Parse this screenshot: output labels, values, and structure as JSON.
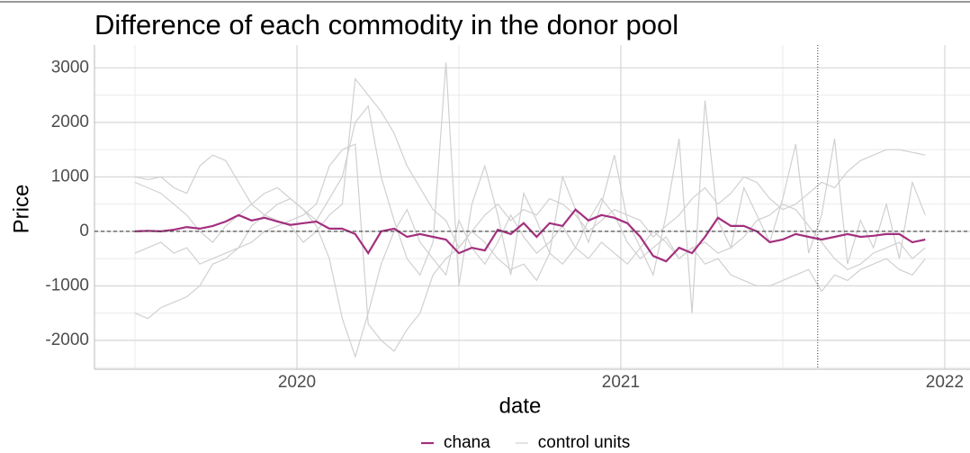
{
  "chart_data": {
    "type": "line",
    "title": "Difference of each commodity in the donor pool",
    "x_label": "date",
    "y_label": "Price",
    "xlim": [
      2019.375,
      2022.078
    ],
    "xticks": [
      2020,
      2021,
      2022
    ],
    "minor_xticks": [
      2019.5,
      2020.5,
      2021.5
    ],
    "ylim": [
      -2530,
      3420
    ],
    "yticks": [
      -2000,
      -1000,
      0,
      1000,
      2000,
      3000
    ],
    "minor_yticks": [
      -2500,
      -1500,
      -500,
      500,
      1500,
      2500
    ],
    "grid": true,
    "hline": 0,
    "vline": 2021.608,
    "legend": "bottom",
    "x": [
      2019.5,
      2019.54,
      2019.58,
      2019.62,
      2019.66,
      2019.7,
      2019.74,
      2019.78,
      2019.82,
      2019.86,
      2019.9,
      2019.94,
      2019.98,
      2020.02,
      2020.06,
      2020.1,
      2020.14,
      2020.18,
      2020.22,
      2020.26,
      2020.3,
      2020.34,
      2020.38,
      2020.42,
      2020.46,
      2020.5,
      2020.54,
      2020.58,
      2020.62,
      2020.66,
      2020.7,
      2020.74,
      2020.78,
      2020.82,
      2020.86,
      2020.9,
      2020.94,
      2020.98,
      2021.02,
      2021.06,
      2021.1,
      2021.14,
      2021.18,
      2021.22,
      2021.26,
      2021.3,
      2021.34,
      2021.38,
      2021.42,
      2021.46,
      2021.5,
      2021.54,
      2021.58,
      2021.62,
      2021.66,
      2021.7,
      2021.74,
      2021.78,
      2021.82,
      2021.86,
      2021.9,
      2021.94
    ],
    "series": [
      {
        "name": "chana",
        "color": "#a3307e",
        "values": [
          0,
          10,
          0,
          30,
          80,
          50,
          100,
          180,
          300,
          200,
          250,
          180,
          120,
          150,
          180,
          50,
          50,
          -50,
          -400,
          0,
          50,
          -100,
          -50,
          -100,
          -150,
          -400,
          -300,
          -350,
          30,
          -50,
          150,
          -100,
          150,
          100,
          400,
          200,
          300,
          250,
          150,
          -100,
          -450,
          -550,
          -300,
          -400,
          -100,
          250,
          100,
          100,
          0,
          -200,
          -150,
          -50,
          -100,
          -150,
          -100,
          -50,
          -100,
          -80,
          -50,
          -50,
          -200,
          -150
        ]
      }
    ],
    "control_units": {
      "name": "control units",
      "color": "#d0d0d0",
      "lines": [
        [
          1000,
          950,
          1000,
          800,
          700,
          1200,
          1400,
          1300,
          900,
          500,
          300,
          200,
          100,
          -200,
          0,
          300,
          500,
          2800,
          2500,
          2200,
          1800,
          1200,
          800,
          400,
          200,
          -300,
          0,
          300,
          500,
          200,
          400,
          300,
          600,
          500,
          300,
          0,
          200,
          400,
          300,
          200,
          -100,
          100,
          300,
          600,
          800,
          500,
          700,
          1000,
          900,
          600,
          400,
          500,
          700,
          900,
          800,
          1100,
          1300,
          1400,
          1500,
          1500,
          1450,
          1400
        ],
        [
          -1500,
          -1600,
          -1400,
          -1300,
          -1200,
          -1000,
          -600,
          -500,
          -300,
          -200,
          0,
          100,
          200,
          300,
          500,
          1200,
          1500,
          1600,
          -1700,
          -2000,
          -2200,
          -1800,
          -1500,
          -800,
          -500,
          -300,
          0,
          -200,
          -500,
          -700,
          -600,
          -900,
          -400,
          -600,
          -300,
          -500,
          -200,
          -400,
          -600,
          -300,
          0,
          -200,
          -500,
          -300,
          -600,
          -500,
          -800,
          -900,
          -1000,
          -1000,
          -900,
          -800,
          -700,
          -1100,
          -800,
          -900,
          -700,
          -600,
          -500,
          -700,
          -800,
          -500
        ],
        [
          -400,
          -300,
          -200,
          -400,
          -300,
          -600,
          -500,
          -400,
          -300,
          100,
          300,
          500,
          600,
          400,
          200,
          600,
          1000,
          2000,
          2300,
          1000,
          200,
          -500,
          -800,
          -200,
          3100,
          -1000,
          500,
          1200,
          300,
          -800,
          700,
          200,
          -400,
          1000,
          400,
          -200,
          500,
          1400,
          200,
          -300,
          -800,
          300,
          1700,
          -1500,
          2400,
          200,
          -300,
          800,
          300,
          -200,
          600,
          1600,
          -400,
          300,
          1700,
          -600,
          200,
          -300,
          500,
          -500,
          900,
          300
        ],
        [
          900,
          800,
          700,
          500,
          300,
          0,
          -200,
          100,
          300,
          500,
          700,
          800,
          600,
          400,
          100,
          -500,
          -1600,
          -2300,
          -1500,
          -600,
          0,
          400,
          -200,
          -500,
          -800,
          200,
          -300,
          -600,
          -200,
          300,
          -100,
          -400,
          -200,
          100,
          -300,
          200,
          600,
          300,
          -200,
          -500,
          -300,
          -100,
          -500,
          -300,
          -200,
          -400,
          -300,
          -100,
          200,
          300,
          500,
          400,
          100,
          -200,
          -500,
          -700,
          -600,
          -400,
          -300,
          -200,
          -500,
          -300
        ]
      ]
    }
  }
}
